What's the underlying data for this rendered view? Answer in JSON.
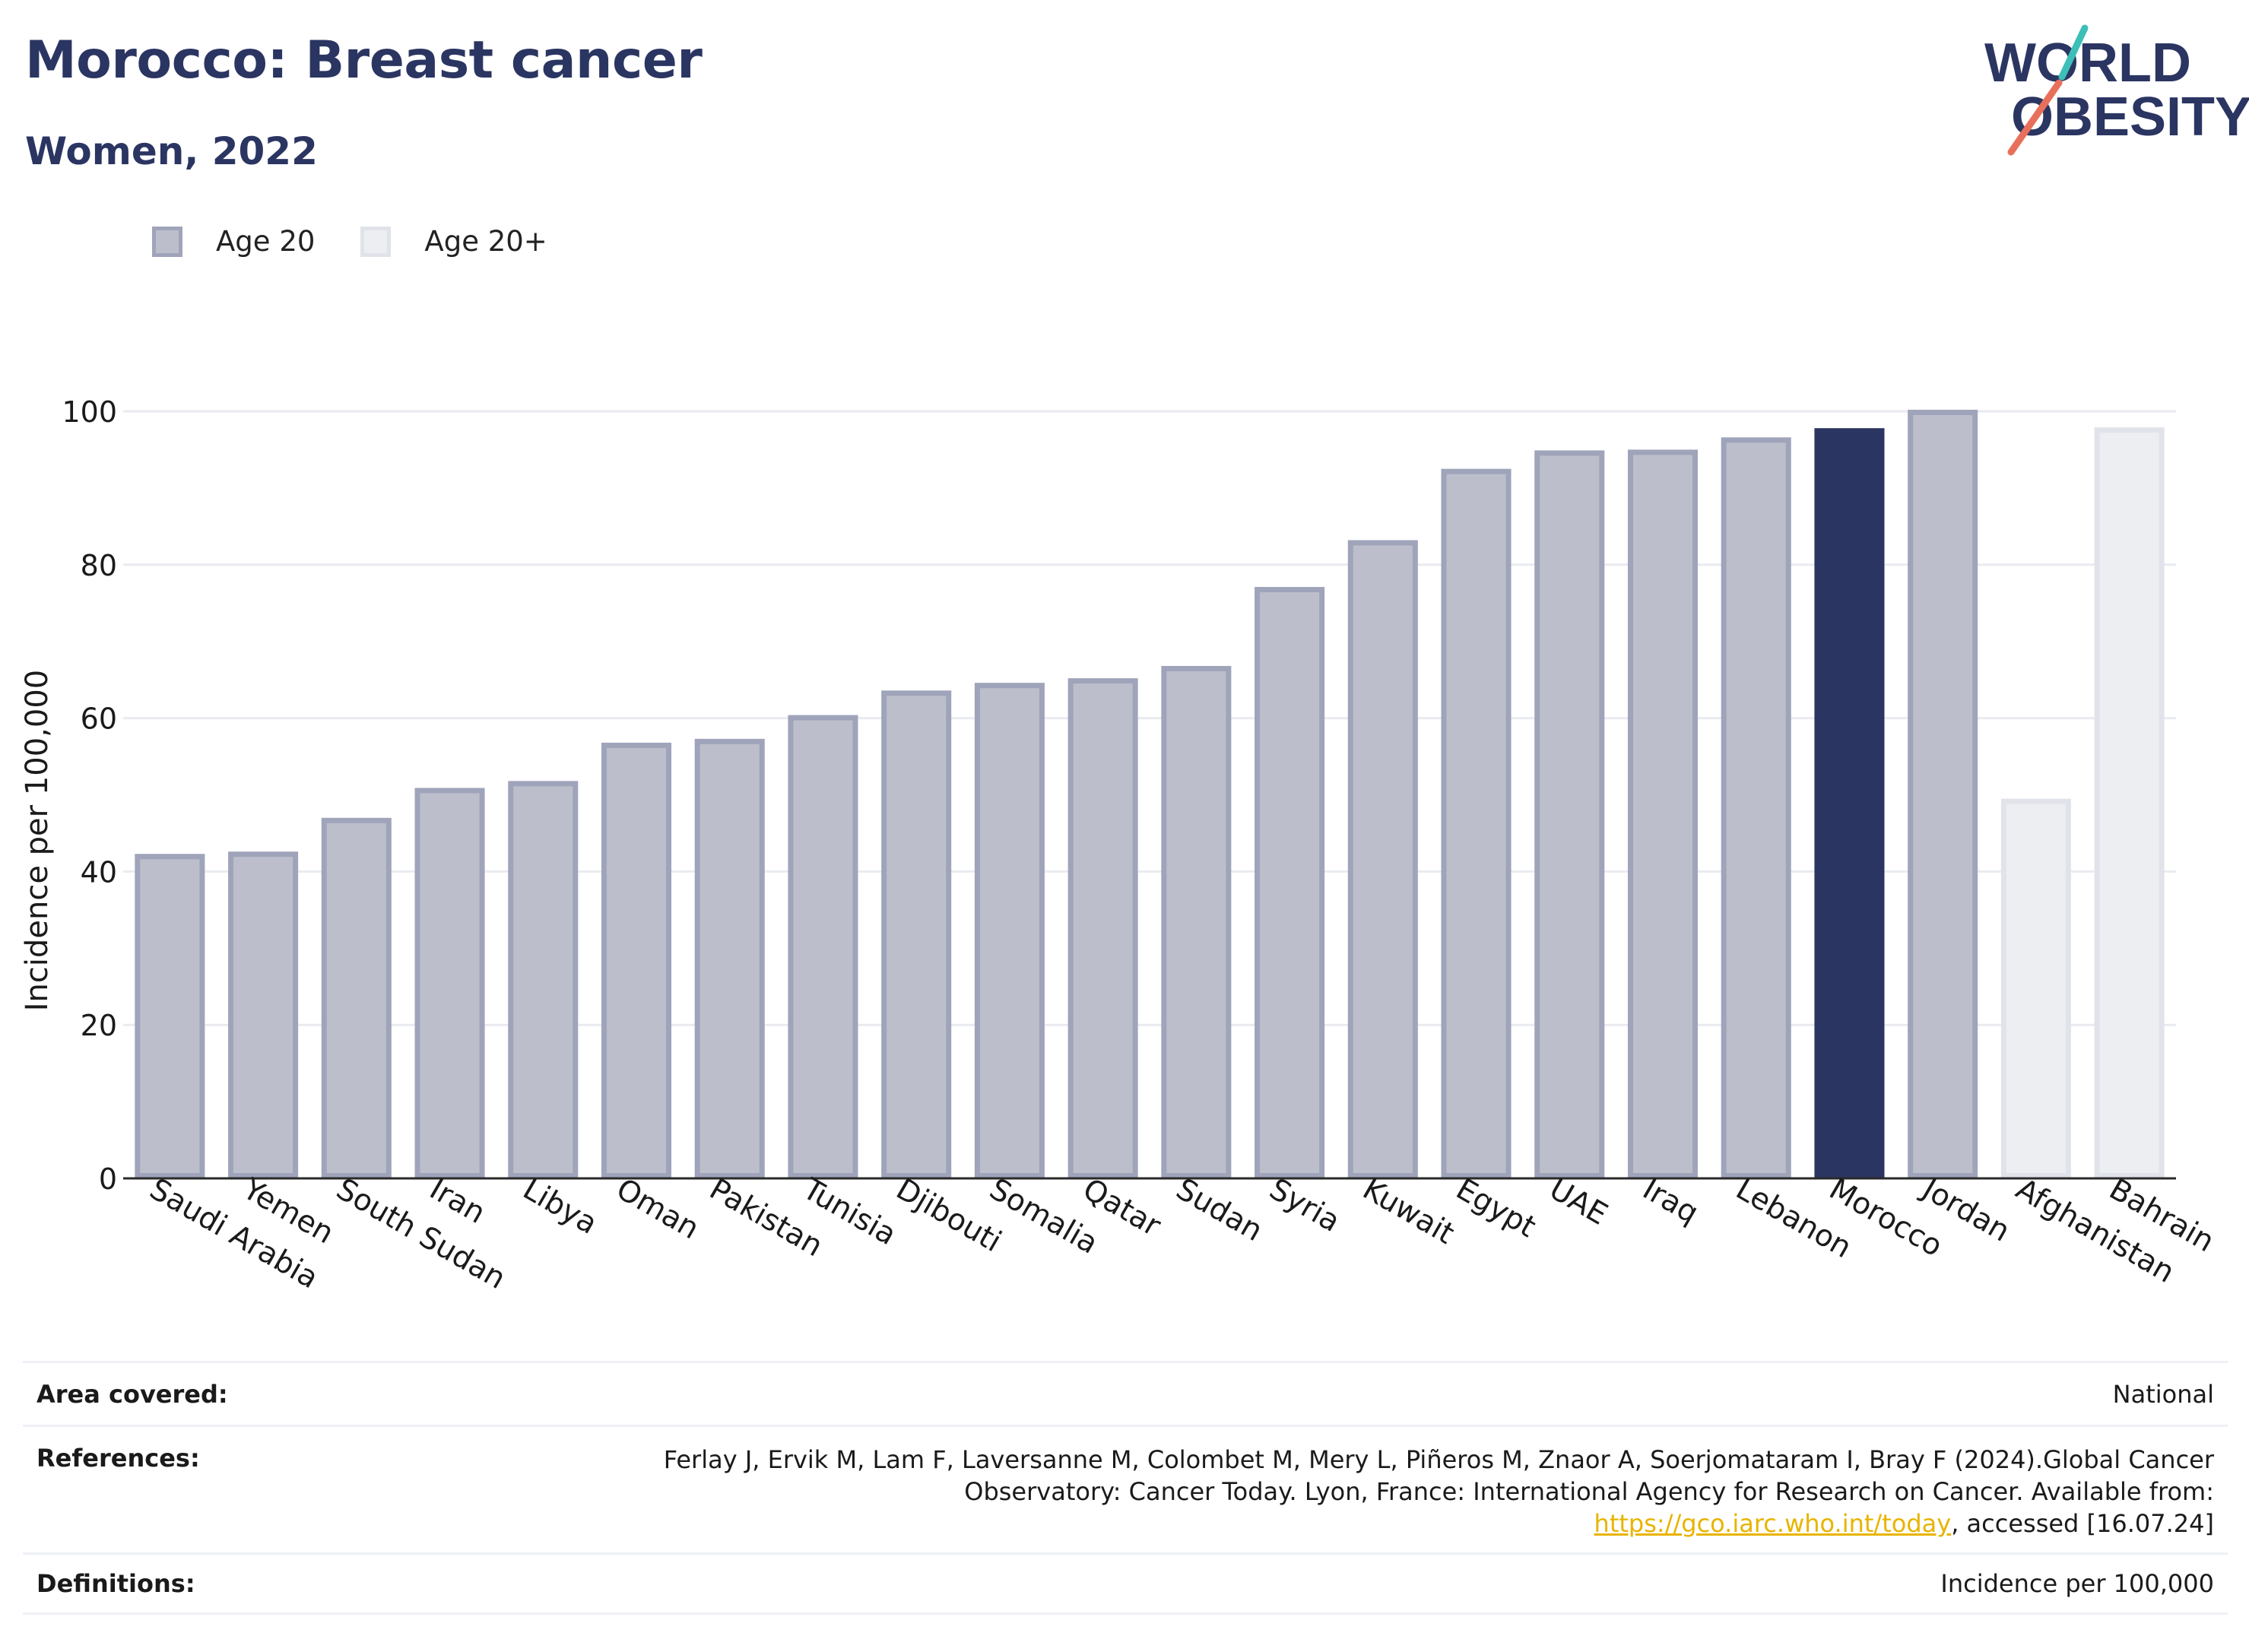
{
  "header": {
    "title": "Morocco: Breast cancer",
    "subtitle": "Women, 2022"
  },
  "logo": {
    "line1": "WORLD",
    "line2": "OBESITY",
    "text_color": "#2b3562",
    "slash_colors": [
      "#3dbfb8",
      "#e8705a"
    ]
  },
  "legend": [
    {
      "label": "Age 20",
      "fill": "#bcbfcb",
      "stroke": "#9fa4ba"
    },
    {
      "label": "Age 20+",
      "fill": "#eceef2",
      "stroke": "#e1e3ea"
    }
  ],
  "chart_data": {
    "type": "bar",
    "ylabel": "Incidence per 100,000",
    "xlabel": "",
    "ylim": [
      0,
      100
    ],
    "yticks": [
      0,
      20,
      40,
      60,
      80,
      100
    ],
    "grid": true,
    "legend_position": "top-left",
    "categories": [
      "Saudi Arabia",
      "Yemen",
      "South Sudan",
      "Iran",
      "Libya",
      "Oman",
      "Pakistan",
      "Tunisia",
      "Djibouti",
      "Somalia",
      "Qatar",
      "Sudan",
      "Syria",
      "Kuwait",
      "Egypt",
      "UAE",
      "Iraq",
      "Lebanon",
      "Morocco",
      "Jordan",
      "Afghanistan",
      "Bahrain"
    ],
    "values": [
      42.3,
      42.6,
      47.0,
      50.9,
      51.8,
      56.8,
      57.3,
      60.4,
      63.6,
      64.6,
      65.2,
      66.8,
      77.1,
      83.2,
      92.5,
      94.9,
      95.0,
      96.6,
      97.8,
      100.2,
      49.5,
      97.9
    ],
    "series_of_bar": [
      "Age 20",
      "Age 20",
      "Age 20",
      "Age 20",
      "Age 20",
      "Age 20",
      "Age 20",
      "Age 20",
      "Age 20",
      "Age 20",
      "Age 20",
      "Age 20",
      "Age 20",
      "Age 20",
      "Age 20",
      "Age 20",
      "Age 20",
      "Age 20",
      "Age 20",
      "Age 20",
      "Age 20+",
      "Age 20+"
    ],
    "highlight": "Morocco",
    "colors": {
      "age20_fill": "#bcbfcb",
      "age20_stroke": "#9fa4ba",
      "age20plus_fill": "#eceef2",
      "age20plus_stroke": "#e1e3ea",
      "highlight_fill": "#2b3562"
    }
  },
  "info": {
    "area_label": "Area covered:",
    "area_value": "National",
    "references_label": "References:",
    "references_text": "Ferlay J, Ervik M, Lam F, Laversanne M, Colombet M, Mery L, Piñeros M, Znaor A, Soerjomataram I, Bray F (2024).Global Cancer Observatory: Cancer Today. Lyon, France: International Agency for Research on Cancer. Available from:",
    "references_link": "https://gco.iarc.who.int/today",
    "references_after": ", accessed [16.07.24]",
    "definitions_label": "Definitions:",
    "definitions_value": "Incidence per 100,000"
  }
}
